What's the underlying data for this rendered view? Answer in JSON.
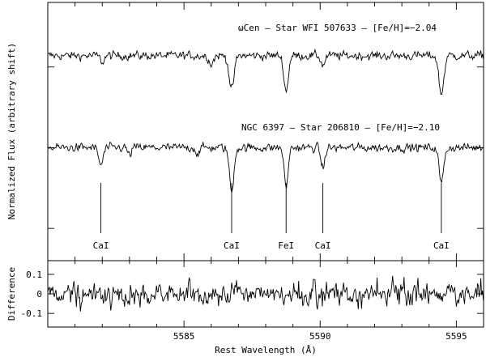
{
  "chart_data": [
    {
      "type": "line",
      "panel": "top",
      "ylabel": "Normalized Flux (arbitrary shift)",
      "xlim": [
        5580,
        5596
      ],
      "ylim": [
        0,
        3.2
      ],
      "series": [
        {
          "name": "ωCen – Star WFI 507633 – [Fe/H]=−2.04",
          "baseline": 2.54,
          "lines": [
            {
              "wavelength": 5586.75,
              "depth": 0.42,
              "width": 0.09
            },
            {
              "wavelength": 5588.75,
              "depth": 0.44,
              "width": 0.08
            },
            {
              "wavelength": 5594.45,
              "depth": 0.48,
              "width": 0.09
            },
            {
              "wavelength": 5586.0,
              "depth": 0.1,
              "width": 0.08
            },
            {
              "wavelength": 5582.0,
              "depth": 0.08,
              "width": 0.07
            },
            {
              "wavelength": 5590.1,
              "depth": 0.12,
              "width": 0.07
            }
          ]
        },
        {
          "name": "NGC 6397 – Star 206810 – [Fe/H]=−2.10",
          "baseline": 1.4,
          "lines": [
            {
              "wavelength": 5581.95,
              "depth": 0.22,
              "width": 0.08
            },
            {
              "wavelength": 5586.75,
              "depth": 0.55,
              "width": 0.08
            },
            {
              "wavelength": 5588.75,
              "depth": 0.5,
              "width": 0.07
            },
            {
              "wavelength": 5590.1,
              "depth": 0.26,
              "width": 0.07
            },
            {
              "wavelength": 5594.45,
              "depth": 0.45,
              "width": 0.08
            },
            {
              "wavelength": 5583.0,
              "depth": 0.1,
              "width": 0.06
            },
            {
              "wavelength": 5585.5,
              "depth": 0.08,
              "width": 0.06
            }
          ]
        }
      ],
      "line_markers": [
        {
          "wavelength": 5581.95,
          "label": "CaI"
        },
        {
          "wavelength": 5586.75,
          "label": "CaI"
        },
        {
          "wavelength": 5588.75,
          "label": "FeI"
        },
        {
          "wavelength": 5590.1,
          "label": "CaI"
        },
        {
          "wavelength": 5594.45,
          "label": "CaI"
        }
      ]
    },
    {
      "type": "line",
      "panel": "bottom",
      "xlabel": "Rest Wavelength (Å)",
      "ylabel": "Difference",
      "xlim": [
        5580,
        5596
      ],
      "ylim": [
        -0.17,
        0.17
      ],
      "xticks": [
        {
          "value": 5585,
          "label": "5585"
        },
        {
          "value": 5590,
          "label": "5590"
        },
        {
          "value": 5595,
          "label": "5595"
        }
      ],
      "yticks": [
        {
          "value": 0.1,
          "label": "0.1"
        },
        {
          "value": 0,
          "label": "0"
        },
        {
          "value": -0.1,
          "label": "-0.1"
        }
      ]
    }
  ]
}
